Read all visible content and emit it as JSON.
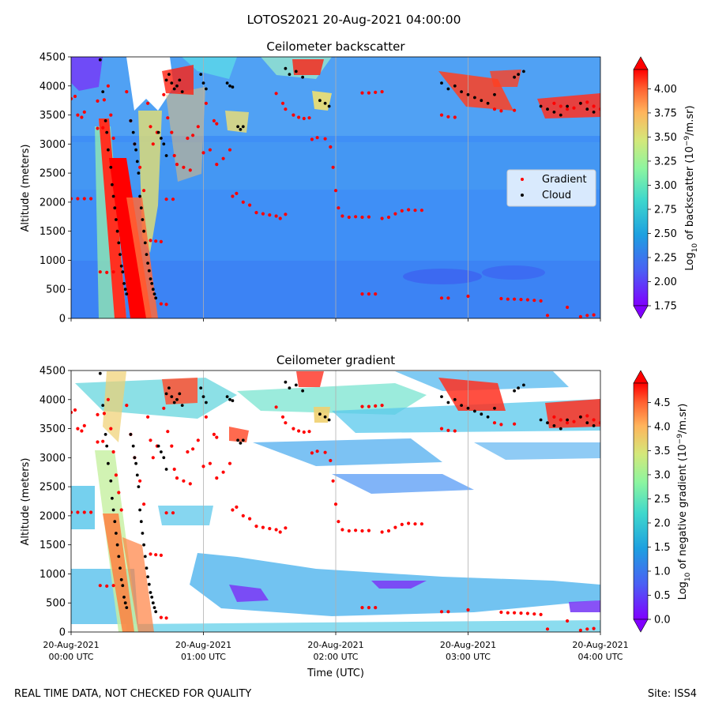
{
  "suptitle": "LOTOS2021 20-Aug-2021 04:00:00",
  "footer_left": "REAL TIME DATA, NOT CHECKED FOR QUALITY",
  "footer_right": "Site: ISS4",
  "xlabel": "Time (UTC)",
  "xticks": [
    [
      "20-Aug-2021",
      "00:00 UTC"
    ],
    [
      "20-Aug-2021",
      "01:00 UTC"
    ],
    [
      "20-Aug-2021",
      "02:00 UTC"
    ],
    [
      "20-Aug-2021",
      "03:00 UTC"
    ],
    [
      "20-Aug-2021",
      "04:00 UTC"
    ]
  ],
  "legend": {
    "gradient": "Gradient",
    "cloud": "Cloud",
    "gradient_color": "#ff0000",
    "cloud_color": "#000000"
  },
  "colors": {
    "cmap": "rainbow",
    "bg_top": "#3f8ff6",
    "grid": "#b0b0b0"
  },
  "chart_data": [
    {
      "type": "heatmap",
      "title": "Ceilometer backscatter",
      "ylabel": "Altitude (meters)",
      "yticks": [
        "0",
        "500",
        "1000",
        "1500",
        "2000",
        "2500",
        "3000",
        "3500",
        "4000",
        "4500"
      ],
      "ylim": [
        0,
        4500
      ],
      "xlim_hours": [
        0,
        4
      ],
      "colorbar": {
        "label_prefix": "Log",
        "label_sub": "10",
        "label_mid": " of backscatter (10",
        "label_sup": "−9",
        "label_end": "/m.sr)",
        "ticks": [
          "1.75",
          "2.00",
          "2.25",
          "2.50",
          "2.75",
          "3.00",
          "3.25",
          "3.50",
          "3.75",
          "4.00"
        ],
        "range": [
          1.75,
          4.2
        ]
      }
    },
    {
      "type": "heatmap",
      "title": "Ceilometer gradient",
      "ylabel": "Altitude (meters)",
      "yticks": [
        "0",
        "500",
        "1000",
        "1500",
        "2000",
        "2500",
        "3000",
        "3500",
        "4000",
        "4500"
      ],
      "ylim": [
        0,
        4500
      ],
      "xlim_hours": [
        0,
        4
      ],
      "colorbar": {
        "label_prefix": "Log",
        "label_sub": "10",
        "label_mid": " of negative gradient (10",
        "label_sup": "−9",
        "label_end": "/m.sr)",
        "ticks": [
          "0.0",
          "0.5",
          "1.0",
          "1.5",
          "2.0",
          "2.5",
          "3.0",
          "3.5",
          "4.0",
          "4.5"
        ],
        "range": [
          0,
          4.9
        ]
      }
    }
  ],
  "gradient_points": [
    [
      0.0,
      3780
    ],
    [
      0.03,
      3820
    ],
    [
      0.05,
      3500
    ],
    [
      0.08,
      3460
    ],
    [
      0.1,
      3550
    ],
    [
      0.0,
      2060
    ],
    [
      0.05,
      2060
    ],
    [
      0.1,
      2060
    ],
    [
      0.15,
      2060
    ],
    [
      0.2,
      3270
    ],
    [
      0.24,
      3280
    ],
    [
      0.2,
      3740
    ],
    [
      0.25,
      3760
    ],
    [
      0.22,
      800
    ],
    [
      0.27,
      790
    ],
    [
      0.32,
      800
    ],
    [
      0.28,
      4000
    ],
    [
      0.3,
      3500
    ],
    [
      0.32,
      3100
    ],
    [
      0.34,
      2700
    ],
    [
      0.36,
      2400
    ],
    [
      0.38,
      2100
    ],
    [
      0.42,
      3900
    ],
    [
      0.45,
      3400
    ],
    [
      0.48,
      3000
    ],
    [
      0.52,
      2600
    ],
    [
      0.55,
      2200
    ],
    [
      0.58,
      3700
    ],
    [
      0.6,
      3300
    ],
    [
      0.62,
      3000
    ],
    [
      0.65,
      3200
    ],
    [
      0.6,
      1340
    ],
    [
      0.64,
      1330
    ],
    [
      0.68,
      1320
    ],
    [
      0.68,
      250
    ],
    [
      0.72,
      240
    ],
    [
      0.7,
      3850
    ],
    [
      0.73,
      3450
    ],
    [
      0.76,
      3200
    ],
    [
      0.78,
      2800
    ],
    [
      0.72,
      2050
    ],
    [
      0.77,
      2050
    ],
    [
      0.8,
      2650
    ],
    [
      0.85,
      2600
    ],
    [
      0.9,
      2550
    ],
    [
      0.88,
      3100
    ],
    [
      0.92,
      3150
    ],
    [
      0.96,
      3300
    ],
    [
      1.0,
      2850
    ],
    [
      1.05,
      2900
    ],
    [
      1.02,
      3700
    ],
    [
      1.08,
      3400
    ],
    [
      1.1,
      3350
    ],
    [
      1.1,
      2650
    ],
    [
      1.15,
      2750
    ],
    [
      1.2,
      2900
    ],
    [
      1.22,
      2100
    ],
    [
      1.25,
      2150
    ],
    [
      1.3,
      2000
    ],
    [
      1.35,
      1950
    ],
    [
      1.4,
      1820
    ],
    [
      1.45,
      1800
    ],
    [
      1.5,
      1780
    ],
    [
      1.55,
      1760
    ],
    [
      1.58,
      1720
    ],
    [
      1.62,
      1790
    ],
    [
      1.55,
      3870
    ],
    [
      1.6,
      3700
    ],
    [
      1.62,
      3600
    ],
    [
      1.68,
      3500
    ],
    [
      1.72,
      3460
    ],
    [
      1.76,
      3440
    ],
    [
      1.8,
      3450
    ],
    [
      1.82,
      3080
    ],
    [
      1.86,
      3110
    ],
    [
      1.92,
      3090
    ],
    [
      1.96,
      2950
    ],
    [
      1.98,
      2600
    ],
    [
      2.0,
      2200
    ],
    [
      2.02,
      1900
    ],
    [
      2.05,
      1760
    ],
    [
      2.1,
      1740
    ],
    [
      2.15,
      1750
    ],
    [
      2.2,
      1740
    ],
    [
      2.25,
      1745
    ],
    [
      2.2,
      3880
    ],
    [
      2.25,
      3880
    ],
    [
      2.3,
      3890
    ],
    [
      2.35,
      3900
    ],
    [
      2.35,
      1720
    ],
    [
      2.4,
      1740
    ],
    [
      2.45,
      1800
    ],
    [
      2.5,
      1850
    ],
    [
      2.55,
      1870
    ],
    [
      2.6,
      1860
    ],
    [
      2.65,
      1860
    ],
    [
      2.2,
      420
    ],
    [
      2.25,
      420
    ],
    [
      2.3,
      420
    ],
    [
      2.8,
      3500
    ],
    [
      2.85,
      3470
    ],
    [
      2.9,
      3460
    ],
    [
      2.8,
      350
    ],
    [
      2.85,
      350
    ],
    [
      3.0,
      380
    ],
    [
      3.2,
      3600
    ],
    [
      3.25,
      3570
    ],
    [
      3.35,
      3580
    ],
    [
      3.25,
      340
    ],
    [
      3.3,
      330
    ],
    [
      3.35,
      330
    ],
    [
      3.4,
      325
    ],
    [
      3.45,
      320
    ],
    [
      3.5,
      310
    ],
    [
      3.55,
      300
    ],
    [
      3.75,
      190
    ],
    [
      3.85,
      30
    ],
    [
      3.9,
      50
    ],
    [
      3.95,
      60
    ],
    [
      3.6,
      50
    ],
    [
      3.65,
      3700
    ],
    [
      3.7,
      3650
    ],
    [
      3.75,
      3600
    ],
    [
      3.8,
      3620
    ],
    [
      3.85,
      3700
    ],
    [
      3.9,
      3720
    ],
    [
      3.95,
      3650
    ],
    [
      4.0,
      3600
    ]
  ],
  "cloud_points": [
    [
      0.22,
      4450
    ],
    [
      0.24,
      3900
    ],
    [
      0.26,
      3400
    ],
    [
      0.27,
      3200
    ],
    [
      0.28,
      2900
    ],
    [
      0.3,
      2600
    ],
    [
      0.31,
      2300
    ],
    [
      0.32,
      2100
    ],
    [
      0.33,
      1900
    ],
    [
      0.34,
      1700
    ],
    [
      0.35,
      1500
    ],
    [
      0.36,
      1300
    ],
    [
      0.37,
      1100
    ],
    [
      0.38,
      900
    ],
    [
      0.39,
      800
    ],
    [
      0.4,
      600
    ],
    [
      0.41,
      500
    ],
    [
      0.42,
      420
    ],
    [
      0.45,
      3400
    ],
    [
      0.47,
      3200
    ],
    [
      0.48,
      3000
    ],
    [
      0.49,
      2900
    ],
    [
      0.5,
      2700
    ],
    [
      0.51,
      2500
    ],
    [
      0.52,
      2100
    ],
    [
      0.53,
      1900
    ],
    [
      0.54,
      1700
    ],
    [
      0.55,
      1500
    ],
    [
      0.56,
      1300
    ],
    [
      0.57,
      1100
    ],
    [
      0.58,
      950
    ],
    [
      0.59,
      820
    ],
    [
      0.6,
      680
    ],
    [
      0.61,
      600
    ],
    [
      0.62,
      500
    ],
    [
      0.63,
      420
    ],
    [
      0.64,
      350
    ],
    [
      0.66,
      3200
    ],
    [
      0.68,
      3100
    ],
    [
      0.7,
      3000
    ],
    [
      0.72,
      2800
    ],
    [
      0.72,
      4100
    ],
    [
      0.74,
      4200
    ],
    [
      0.76,
      4050
    ],
    [
      0.78,
      3950
    ],
    [
      0.8,
      4000
    ],
    [
      0.82,
      4100
    ],
    [
      0.84,
      3900
    ],
    [
      0.98,
      4200
    ],
    [
      1.0,
      4050
    ],
    [
      1.02,
      3950
    ],
    [
      1.18,
      4050
    ],
    [
      1.2,
      4000
    ],
    [
      1.22,
      3980
    ],
    [
      1.26,
      3300
    ],
    [
      1.28,
      3250
    ],
    [
      1.3,
      3300
    ],
    [
      1.62,
      4300
    ],
    [
      1.65,
      4200
    ],
    [
      1.7,
      4250
    ],
    [
      1.75,
      4150
    ],
    [
      1.88,
      3750
    ],
    [
      1.92,
      3700
    ],
    [
      1.95,
      3650
    ],
    [
      2.8,
      4050
    ],
    [
      2.85,
      3950
    ],
    [
      2.9,
      4000
    ],
    [
      2.95,
      3900
    ],
    [
      3.0,
      3850
    ],
    [
      3.05,
      3800
    ],
    [
      3.1,
      3750
    ],
    [
      3.15,
      3700
    ],
    [
      3.2,
      3850
    ],
    [
      3.35,
      4150
    ],
    [
      3.38,
      4200
    ],
    [
      3.42,
      4250
    ],
    [
      3.55,
      3650
    ],
    [
      3.6,
      3600
    ],
    [
      3.65,
      3550
    ],
    [
      3.7,
      3500
    ],
    [
      3.75,
      3650
    ],
    [
      3.85,
      3700
    ],
    [
      3.9,
      3600
    ],
    [
      3.95,
      3550
    ]
  ]
}
